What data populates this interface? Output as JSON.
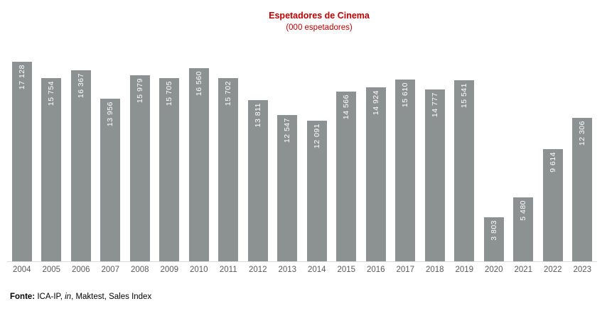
{
  "header": {
    "title": "Espetadores de Cinema",
    "subtitle": "(000 espetadores)",
    "title_color": "#C00000"
  },
  "chart_data": {
    "type": "bar",
    "title": "Espetadores de Cinema",
    "subtitle": "(000 espetadores)",
    "xlabel": "",
    "ylabel": "",
    "categories": [
      "2004",
      "2005",
      "2006",
      "2007",
      "2008",
      "2009",
      "2010",
      "2011",
      "2012",
      "2013",
      "2014",
      "2015",
      "2016",
      "2017",
      "2018",
      "2019",
      "2020",
      "2021",
      "2022",
      "2023"
    ],
    "values": [
      17128,
      15754,
      16367,
      13956,
      15979,
      15705,
      16560,
      15702,
      13811,
      12547,
      12091,
      14566,
      14924,
      15610,
      14777,
      15541,
      3803,
      5480,
      9614,
      12306
    ],
    "value_labels": [
      "17 128",
      "15 754",
      "16 367",
      "13 956",
      "15 979",
      "15 705",
      "16 560",
      "15 702",
      "13 811",
      "12 547",
      "12 091",
      "14 566",
      "14 924",
      "15 610",
      "14 777",
      "15 541",
      "3 803",
      "5 480",
      "9 614",
      "12 306"
    ],
    "ylim": [
      0,
      17128
    ],
    "grid": false,
    "legend": false,
    "value_labels_rotated": true,
    "bar_color": "#8C9192",
    "value_label_color": "#FFFFFF",
    "axis_line_color": "#D9D9D9",
    "tick_label_color": "#595959"
  },
  "footer": {
    "prefix": "Fonte:",
    "part1": " ICA-IP, ",
    "italic": "in",
    "part2": ", Maktest, Sales Index"
  }
}
